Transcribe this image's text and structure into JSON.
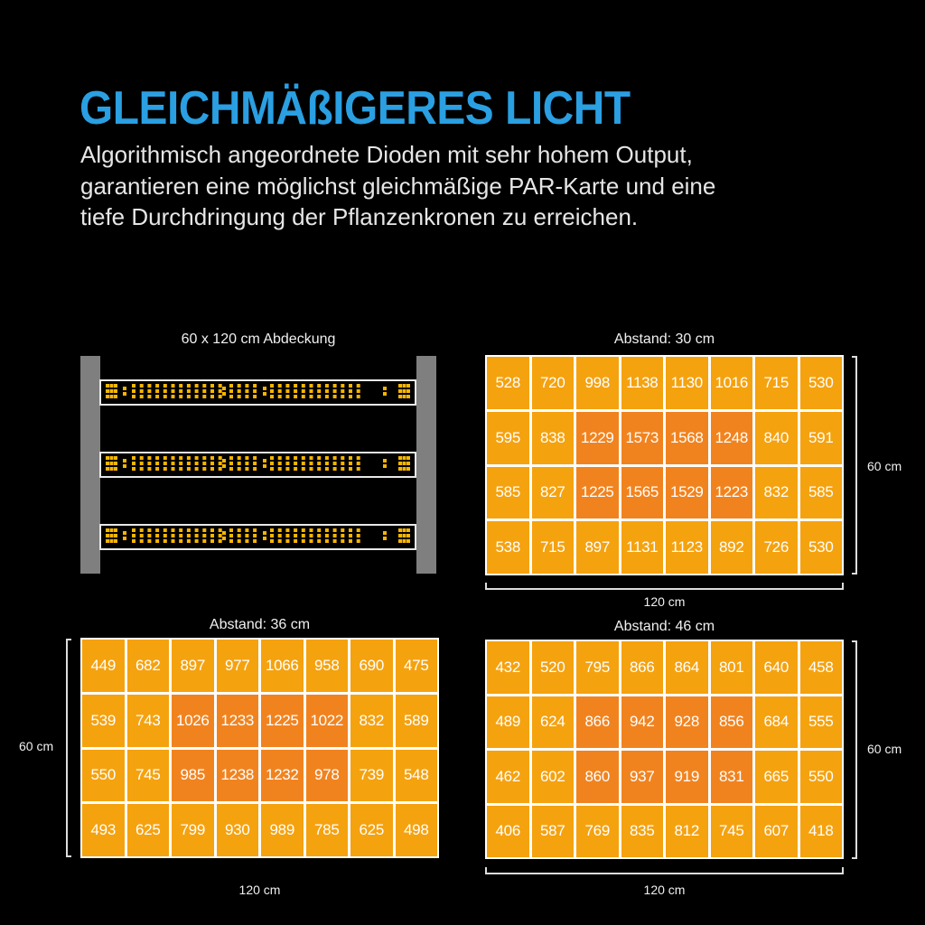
{
  "header": {
    "title": "GLEICHMÄßIGERES LICHT",
    "description_lines": [
      "Algorithmisch angeordnete Dioden mit sehr hohem Output,",
      "garantieren eine möglichst gleichmäßige PAR-Karte und eine",
      "tiefe Durchdringung der Pflanzenkronen zu erreichen."
    ]
  },
  "fixture_diagram": {
    "label": "60 x 120 cm Abdeckung",
    "bar_count": 3,
    "pole_color": "#7f7f7f",
    "diode_color": "#f7b500"
  },
  "colors": {
    "title": "#2a9fe2",
    "cell_normal": "#f5a20f",
    "cell_hot": "#f1831f",
    "background": "#000000"
  },
  "maps": [
    {
      "title": "Abstand: 30 cm",
      "width_label": "120 cm",
      "height_label": "60 cm"
    },
    {
      "title": "Abstand: 36 cm",
      "width_label": "120 cm",
      "height_label": "60 cm"
    },
    {
      "title": "Abstand: 46 cm",
      "width_label": "120 cm",
      "height_label": "60 cm"
    }
  ],
  "chart_data": [
    {
      "type": "heatmap",
      "title": "Abstand: 30 cm",
      "xlabel": "120 cm",
      "ylabel": "60 cm",
      "rows": [
        [
          528,
          720,
          998,
          1138,
          1130,
          1016,
          715,
          530
        ],
        [
          595,
          838,
          1229,
          1573,
          1568,
          1248,
          840,
          591
        ],
        [
          585,
          827,
          1225,
          1565,
          1529,
          1223,
          832,
          585
        ],
        [
          538,
          715,
          897,
          1131,
          1123,
          892,
          726,
          530
        ]
      ],
      "highlighted_cells": "rows 2-3, columns 3-6"
    },
    {
      "type": "heatmap",
      "title": "Abstand: 36 cm",
      "xlabel": "120 cm",
      "ylabel": "60 cm",
      "rows": [
        [
          449,
          682,
          897,
          977,
          1066,
          958,
          690,
          475
        ],
        [
          539,
          743,
          1026,
          1233,
          1225,
          1022,
          832,
          589
        ],
        [
          550,
          745,
          985,
          1238,
          1232,
          978,
          739,
          548
        ],
        [
          493,
          625,
          799,
          930,
          989,
          785,
          625,
          498
        ]
      ],
      "highlighted_cells": "rows 2-3, columns 3-6"
    },
    {
      "type": "heatmap",
      "title": "Abstand: 46 cm",
      "xlabel": "120 cm",
      "ylabel": "60 cm",
      "rows": [
        [
          432,
          520,
          795,
          866,
          864,
          801,
          640,
          458
        ],
        [
          489,
          624,
          866,
          942,
          928,
          856,
          684,
          555
        ],
        [
          462,
          602,
          860,
          937,
          919,
          831,
          665,
          550
        ],
        [
          406,
          587,
          769,
          835,
          812,
          745,
          607,
          418
        ]
      ],
      "highlighted_cells": "rows 2-3, columns 3-6"
    }
  ]
}
